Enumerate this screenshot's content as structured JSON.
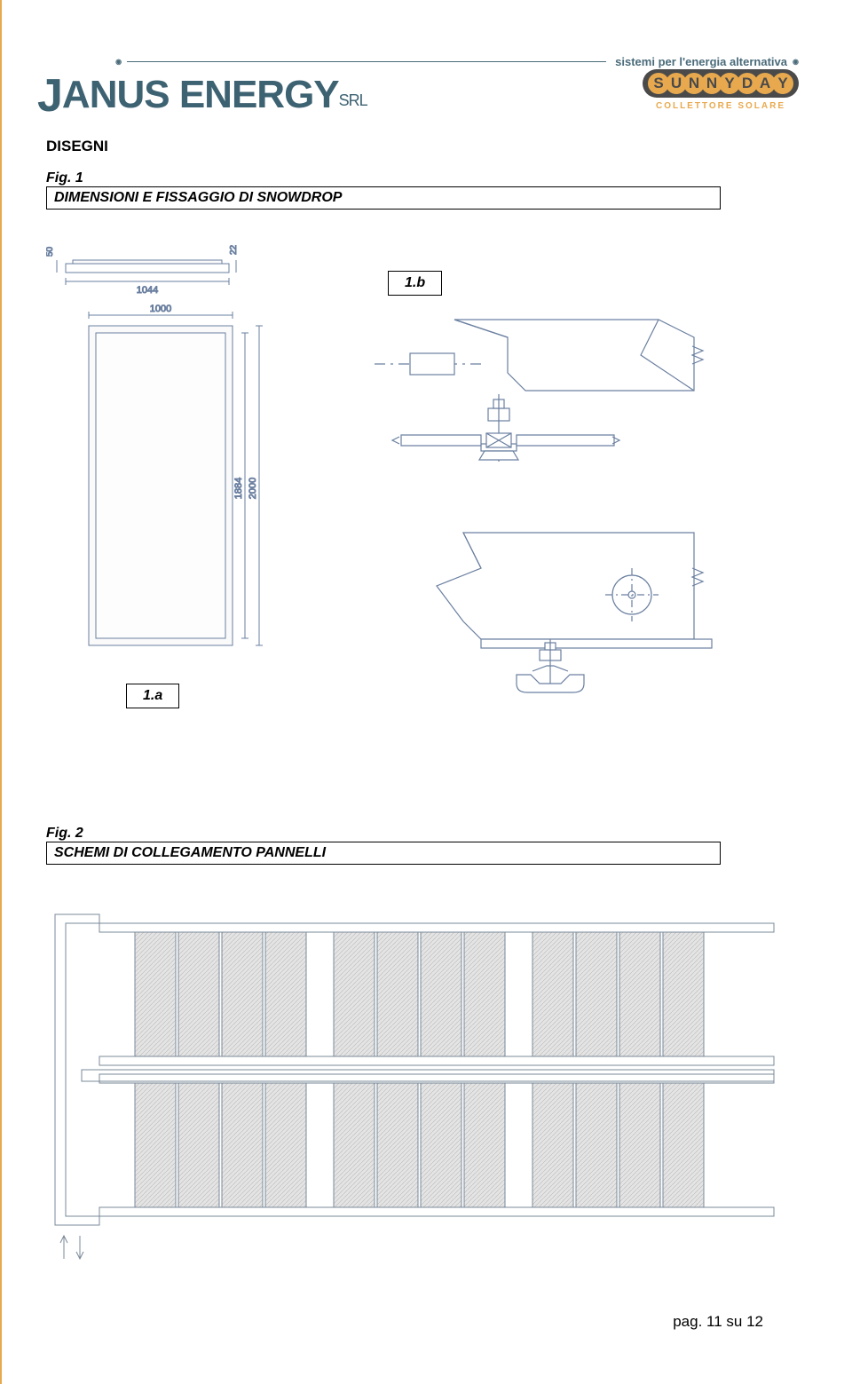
{
  "header": {
    "tagline": "sistemi per l'energia alternativa",
    "company": "JANUS ENERGY",
    "company_suffix": "SRL",
    "logo_letters": [
      "S",
      "U",
      "N",
      "N",
      "Y",
      "D",
      "A",
      "Y"
    ],
    "logo_subtitle": "COLLETTORE SOLARE"
  },
  "titles": {
    "disegni": "DISEGNI",
    "fig1_label": "Fig. 1",
    "fig1_caption": "DIMENSIONI E FISSAGGIO DI SNOWDROP",
    "fig2_label": "Fig. 2",
    "fig2_caption": "SCHEMI DI COLLEGAMENTO PANNELLI"
  },
  "fig1": {
    "sublabel_a": "1.a",
    "sublabel_b": "1.b",
    "dims": {
      "top_width": "1044",
      "top_height": "50",
      "top_thickness": "22",
      "front_width": "1000",
      "front_height_outer": "2000",
      "front_height_inner": "1884"
    },
    "colors": {
      "stroke": "#6a7fa0",
      "dim_text": "#6a7fa0",
      "panel_fill": "#fafafa",
      "axis": "#a0a0a0"
    }
  },
  "fig2": {
    "groups_per_row": 3,
    "panels_per_group": 4,
    "rows": 2,
    "colors": {
      "stroke": "#7a8898",
      "pipe": "#7a8898",
      "panel_fill": "#d8d8d8"
    }
  },
  "footer": {
    "page_text": "pag. 11 su 12"
  }
}
